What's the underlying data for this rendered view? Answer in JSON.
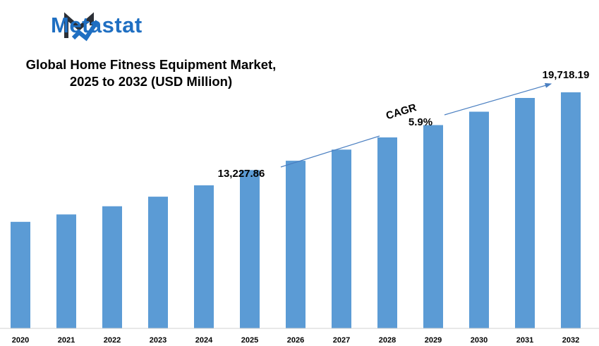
{
  "brand": {
    "name": "Metastat",
    "colors": {
      "primary": "#1f6fc2",
      "dark": "#2b2f36"
    },
    "logo_icon": "metastat-m-logo-icon"
  },
  "chart_data": {
    "type": "bar",
    "title": [
      "Global Home Fitness Equipment Market,",
      "2025 to 2032 (USD Million)"
    ],
    "categories": [
      "2020",
      "2021",
      "2022",
      "2023",
      "2024",
      "2025",
      "2026",
      "2027",
      "2028",
      "2029",
      "2030",
      "2031",
      "2032"
    ],
    "values": [
      8900,
      9520,
      10200,
      11000,
      11950,
      13227.86,
      14000,
      14930,
      15950,
      16980,
      18100,
      19250,
      19718.19
    ],
    "ylim": [
      0,
      20000
    ],
    "bar_color": "#5b9bd5",
    "grid": false,
    "legend": "none",
    "annotations": {
      "start_label": "13,227.86",
      "end_label": "19,718.19",
      "cagr_label": "CAGR",
      "cagr_value": "5.9%"
    }
  }
}
